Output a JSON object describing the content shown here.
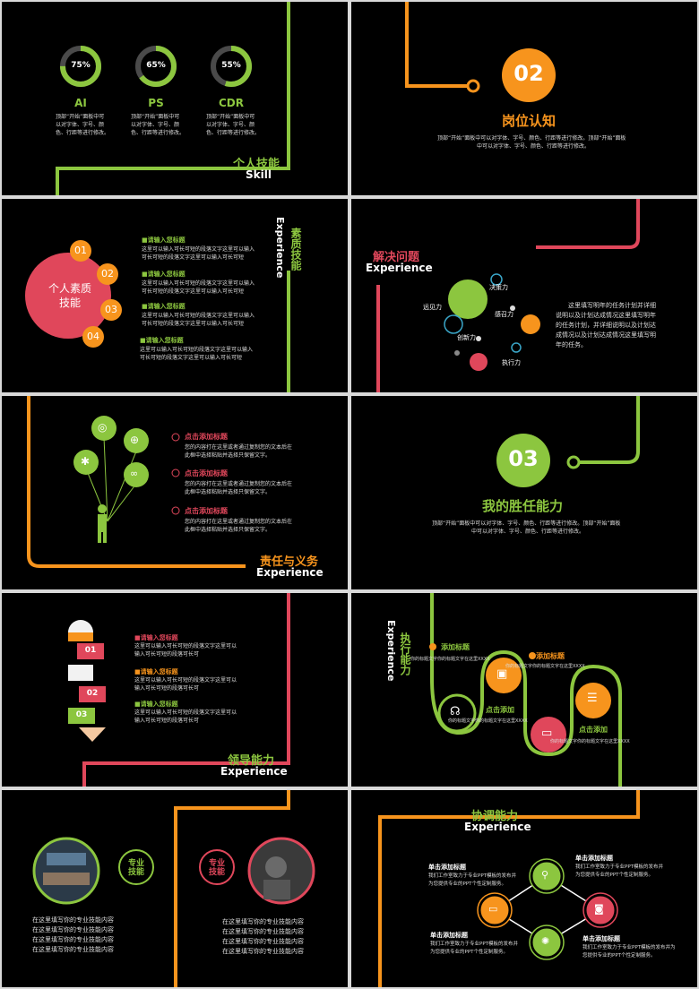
{
  "colors": {
    "green": "#8cc63f",
    "orange": "#f7941d",
    "red": "#e0475b",
    "bg": "#000000"
  },
  "s1": {
    "skills": [
      {
        "pct": "75%",
        "name": "AI",
        "value": 0.75
      },
      {
        "pct": "65%",
        "name": "PS",
        "value": 0.65
      },
      {
        "pct": "55%",
        "name": "CDR",
        "value": 0.55
      }
    ],
    "desc": "顶部“开始”面板中可以对字体、字号、颜色、行距等进行修改。",
    "title": "个人技能",
    "subtitle": "Skill"
  },
  "s2": {
    "num": "02",
    "title": "岗位认知",
    "desc1": "顶部“开始”面板中可以对字体、字号、颜色、行距等进行修改。顶部“开始”面板",
    "desc2": "中可以对字体、字号、颜色、行距等进行修改。"
  },
  "s3": {
    "circle": "个人素质技能",
    "title": "素质技能",
    "subtitle": "Experience",
    "nums": [
      "01",
      "02",
      "03",
      "04"
    ],
    "items": [
      {
        "head": "■请输入您标题",
        "body": "这里可以输入可长可短的段落文字这里可以输入可长可短的段落文字这里可以输入可长可短"
      },
      {
        "head": "■请输入您标题",
        "body": "这里可以输入可长可短的段落文字这里可以输入可长可短的段落文字这里可以输入可长可短"
      },
      {
        "head": "■请输入您标题",
        "body": "这里可以输入可长可短的段落文字这里可以输入可长可短的段落文字这里可以输入可长可短"
      },
      {
        "head": "■请输入您标题",
        "body": "这里可以输入可长可短的段落文字这里可以输入可长可短的段落文字这里可以输入可长可短"
      }
    ]
  },
  "s4": {
    "title": "解决问题",
    "subtitle": "Experience",
    "labels": [
      "决策力",
      "远见力",
      "感召力",
      "创新力",
      "执行力"
    ],
    "desc": "这里填写明年的任务计划并详细说明以及计划达成情况这里填写明年的任务计划，并详细说明以及计划达成情况以及计划达成情况这里填写明年的任务。"
  },
  "s5": {
    "title": "责任与义务",
    "subtitle": "Experience",
    "items": [
      {
        "head": "点击添加标题",
        "body": "您的内容打在这里或者通过复制您的文本后在此框中选择粘贴并选择只保留文字。"
      },
      {
        "head": "点击添加标题",
        "body": "您的内容打在这里或者通过复制您的文本后在此框中选择粘贴并选择只保留文字。"
      },
      {
        "head": "点击添加标题",
        "body": "您的内容打在这里或者通过复制您的文本后在此框中选择粘贴并选择只保留文字。"
      }
    ]
  },
  "s6": {
    "num": "03",
    "title": "我的胜任能力",
    "desc1": "顶部“开始”面板中可以对字体、字号、颜色、行距等进行修改。顶部“开始”面板",
    "desc2": "中可以对字体、字号、颜色、行距等进行修改。"
  },
  "s7": {
    "title": "领导能力",
    "subtitle": "Experience",
    "nums": [
      "01",
      "02",
      "03"
    ],
    "items": [
      {
        "head": "■请输入您标题",
        "body": "这里可以输入可长可短的段落文字这里可以输入可长可短的段落可长可"
      },
      {
        "head": "■请输入您标题",
        "body": "这里可以输入可长可短的段落文字这里可以输入可长可短的段落可长可"
      },
      {
        "head": "■请输入您标题",
        "body": "这里可以输入可长可短的段落文字这里可以输入可长可短的段落可长可"
      }
    ]
  },
  "s8": {
    "title": "执行能力",
    "subtitle": "Experience",
    "items": [
      {
        "head": "添加标题",
        "body": "你的标题文字你的标题文字在这里XXXX"
      },
      {
        "head": "添加标题",
        "body": "你的标题文字你的标题文字在这里XXXX"
      },
      {
        "head": "点击添加",
        "body": "你的标题文字你的标题文字在这里XXXX"
      },
      {
        "head": "点击添加",
        "body": "你的标题文字你的标题文字在这里XXXX"
      }
    ]
  },
  "s9": {
    "left_badge": "专业技能",
    "right_badge": "专业技能",
    "line": "在这里填写你的专业技能内容"
  },
  "s10": {
    "title": "协调能力",
    "subtitle": "Experience",
    "items": [
      {
        "head": "单击添加标题",
        "body": "我们工作室致力于专业PPT模板的发布并为您提供专业的PPT个性定制服务。"
      },
      {
        "head": "单击添加标题",
        "body": "我们工作室致力于专业PPT模板的发布并为您提供专业的PPT个性定制服务。"
      },
      {
        "head": "单击添加标题",
        "body": "我们工作室致力于专业PPT模板的发布并为您提供专业的PPT个性定制服务。"
      },
      {
        "head": "单击添加标题",
        "body": "我们工作室致力于专业PPT模板的发布并为您提供专业的PPT个性定制服务。"
      }
    ]
  }
}
